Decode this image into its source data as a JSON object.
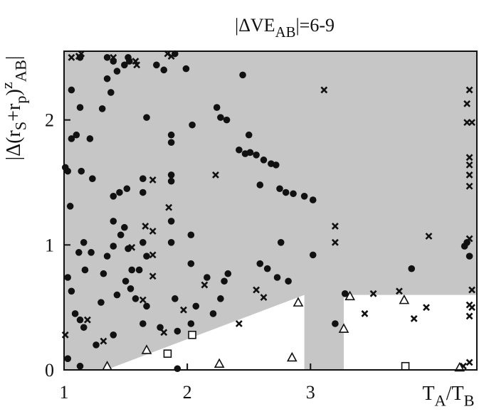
{
  "chart_data": {
    "type": "scatter",
    "title": [
      {
        "text": "|ΔVE"
      },
      {
        "text": "AB",
        "sub": true
      },
      {
        "text": "|=6-9"
      }
    ],
    "y_label": [
      {
        "text": "|Δ(r"
      },
      {
        "text": "S",
        "sub": true
      },
      {
        "text": "+r"
      },
      {
        "text": "p",
        "sub": true
      },
      {
        "text": ")"
      },
      {
        "text": "z",
        "sup": true
      },
      {
        "text": "AB",
        "sub": true
      },
      {
        "text": "|"
      }
    ],
    "x_label": [
      {
        "text": "T"
      },
      {
        "text": "A",
        "sub": true
      },
      {
        "text": "/T"
      },
      {
        "text": "B",
        "sub": true
      }
    ],
    "xlim": [
      1,
      4.35
    ],
    "ylim": [
      0,
      2.55
    ],
    "xticks": [
      1,
      2,
      3
    ],
    "yticks": [
      0,
      1,
      2
    ],
    "shade_color": "#c6c6c6",
    "unshaded_regions": [
      {
        "x": [
          1.34,
          2.95,
          2.95
        ],
        "y": [
          0,
          0.6,
          0
        ]
      },
      {
        "x": [
          3.27,
          4.35,
          4.35,
          3.27
        ],
        "y": [
          0,
          0,
          0.6,
          0.6
        ]
      }
    ],
    "series": [
      {
        "marker": "circle",
        "color": "#111111",
        "x": [
          1.06,
          1.01,
          1.03,
          1.05,
          1.06,
          1.1,
          1.13,
          1.13,
          1.14,
          1.16,
          1.12,
          1.17,
          1.03,
          1.06,
          1.09,
          1.13,
          1.16,
          1.03,
          1.13,
          1.21,
          1.23,
          1.22,
          1.26,
          1.31,
          1.35,
          1.35,
          1.38,
          1.4,
          1.43,
          1.4,
          1.4,
          1.35,
          1.32,
          1.3,
          1.4,
          1.43,
          1.46,
          1.49,
          1.52,
          1.5,
          1.54,
          1.58,
          1.55,
          1.4,
          1.45,
          1.51,
          1.49,
          1.52,
          1.53,
          1.64,
          1.64,
          1.67,
          1.64,
          1.67,
          1.61,
          1.67,
          1.64,
          1.75,
          1.81,
          1.87,
          1.87,
          1.87,
          1.87,
          1.87,
          1.87,
          1.9,
          1.92,
          1.78,
          1.9,
          1.99,
          2.04,
          2.03,
          2.03,
          2.07,
          2.03,
          1.92,
          2.16,
          2.24,
          2.27,
          2.32,
          2.33,
          2.3,
          2.27,
          2.21,
          2.45,
          2.42,
          2.47,
          2.51,
          2.56,
          2.62,
          2.68,
          2.72,
          2.5,
          2.59,
          2.75,
          2.8,
          2.86,
          2.95,
          3.02,
          2.76,
          2.59,
          2.65,
          2.73,
          2.82,
          3.02,
          3.2,
          3.28,
          3.82,
          4.27,
          4.29,
          4.25
        ],
        "values": [
          2.24,
          1.62,
          1.59,
          1.31,
          1.85,
          1.88,
          2.1,
          2.5,
          1.59,
          1.02,
          0.94,
          0.8,
          0.74,
          0.63,
          0.45,
          0.4,
          0.34,
          0.09,
          0.03,
          1.85,
          1.53,
          0.94,
          0.2,
          2.09,
          2.33,
          2.5,
          2.22,
          2.47,
          2.39,
          1.19,
          0.99,
          0.91,
          0.77,
          0.54,
          0.28,
          0.6,
          1.08,
          1.14,
          0.97,
          0.71,
          0.65,
          0.57,
          0.8,
          1.39,
          1.42,
          1.45,
          2.44,
          2.5,
          2.47,
          1.53,
          1.42,
          2.02,
          1.02,
          0.91,
          0.8,
          0.51,
          0.37,
          2.44,
          2.4,
          1.88,
          1.82,
          1.56,
          1.51,
          1.19,
          1.02,
          0.57,
          0.31,
          0.34,
          2.53,
          2.41,
          1.96,
          1.08,
          0.85,
          0.51,
          0.37,
          0.01,
          0.74,
          2.1,
          2.02,
          2.0,
          0.77,
          0.71,
          0.57,
          0.45,
          2.36,
          1.76,
          1.73,
          1.74,
          1.72,
          1.68,
          1.65,
          1.64,
          1.88,
          1.48,
          1.45,
          1.42,
          1.41,
          1.39,
          1.36,
          1.02,
          0.85,
          0.81,
          0.74,
          0.71,
          0.92,
          0.37,
          0.61,
          0.81,
          1.02,
          0.91,
          0.99
        ]
      },
      {
        "marker": "cross",
        "color": "#111111",
        "x": [
          1.06,
          1.12,
          1.14,
          1.01,
          1.19,
          1.32,
          1.4,
          1.58,
          1.59,
          1.84,
          1.87,
          1.72,
          1.85,
          1.55,
          1.66,
          1.72,
          1.72,
          1.72,
          1.64,
          1.81,
          1.97,
          2.14,
          2.23,
          2.42,
          2.56,
          2.62,
          3.11,
          3.2,
          3.2,
          3.44,
          3.51,
          3.72,
          3.84,
          3.94,
          3.96,
          4.29,
          4.27,
          4.27,
          4.31,
          4.29,
          4.29,
          4.29,
          4.29,
          4.29,
          4.31,
          4.29,
          4.31,
          4.29,
          4.29,
          4.24
        ],
        "values": [
          2.5,
          2.51,
          2.53,
          0.28,
          0.4,
          0.23,
          2.5,
          2.47,
          2.44,
          2.53,
          2.51,
          1.52,
          1.3,
          0.98,
          1.15,
          1.11,
          0.92,
          0.75,
          0.56,
          0.3,
          0.48,
          0.68,
          1.56,
          0.37,
          0.64,
          0.58,
          2.24,
          1.15,
          1.02,
          0.45,
          0.61,
          0.63,
          0.41,
          0.5,
          1.07,
          2.24,
          2.13,
          1.98,
          1.98,
          1.7,
          1.64,
          1.56,
          1.47,
          1.05,
          0.64,
          0.52,
          0.5,
          0.43,
          0.06,
          0.03
        ]
      },
      {
        "marker": "triangle",
        "color": "#111111",
        "x": [
          1.35,
          1.67,
          2.26,
          2.85,
          2.9,
          3.27,
          3.32,
          3.76,
          4.21
        ],
        "values": [
          0.03,
          0.16,
          0.05,
          0.1,
          0.54,
          0.33,
          0.59,
          0.56,
          0.02
        ]
      },
      {
        "marker": "square",
        "color": "#111111",
        "x": [
          1.84,
          2.04,
          3.77
        ],
        "values": [
          0.13,
          0.28,
          0.03
        ]
      }
    ]
  }
}
